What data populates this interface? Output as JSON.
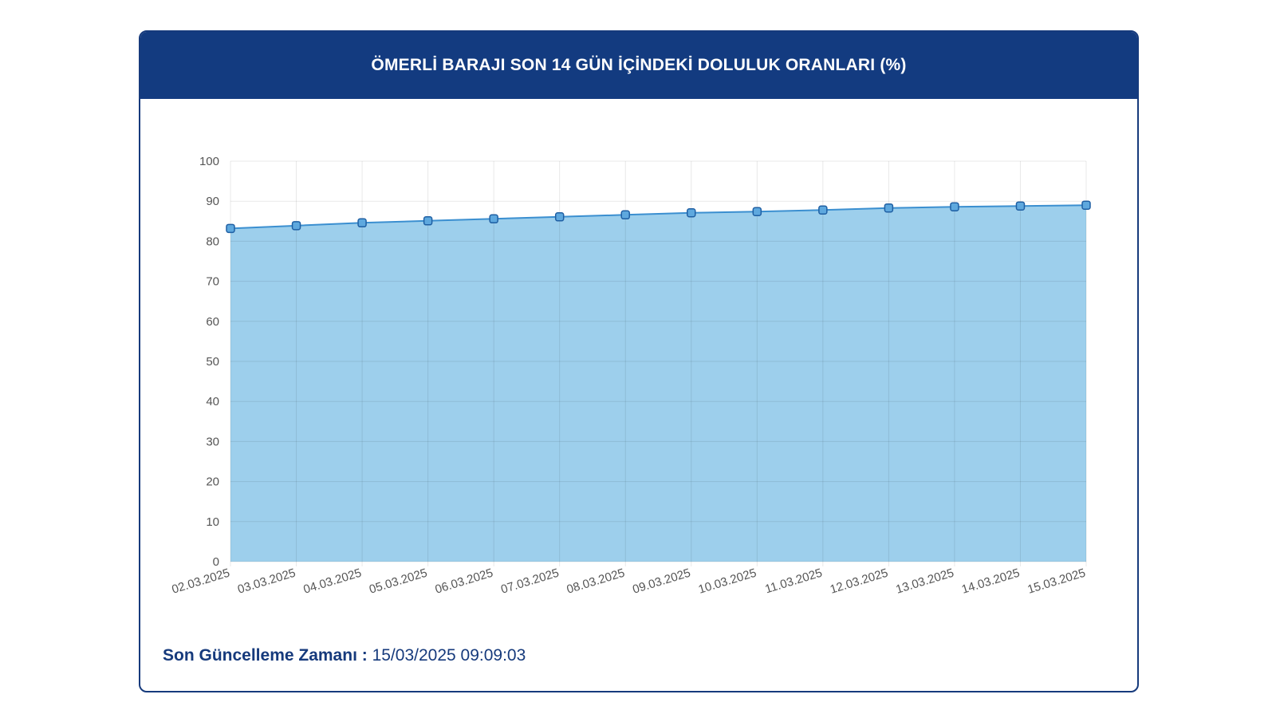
{
  "card": {
    "title": "ÖMERLİ BARAJI SON 14 GÜN İÇİNDEKİ DOLULUK ORANLARI (%)"
  },
  "footer": {
    "label": "Son Güncelleme Zamanı :",
    "value": "15/03/2025 09:09:03"
  },
  "colors": {
    "header": "#133b80",
    "area_fill": "#9dcfec",
    "line": "#3b8fd0",
    "marker_stroke": "#1f5fa3"
  },
  "chart_data": {
    "type": "area",
    "x": [
      "02.03.2025",
      "03.03.2025",
      "04.03.2025",
      "05.03.2025",
      "06.03.2025",
      "07.03.2025",
      "08.03.2025",
      "09.03.2025",
      "10.03.2025",
      "11.03.2025",
      "12.03.2025",
      "13.03.2025",
      "14.03.2025",
      "15.03.2025"
    ],
    "series": [
      {
        "values": [
          83.2,
          83.9,
          84.6,
          85.1,
          85.6,
          86.1,
          86.6,
          87.1,
          87.4,
          87.8,
          88.3,
          88.6,
          88.8,
          89.0
        ]
      }
    ],
    "ylim": [
      0,
      100
    ],
    "yticks": [
      0,
      10,
      20,
      30,
      40,
      50,
      60,
      70,
      80,
      90,
      100
    ],
    "grid": true,
    "legend": "none"
  }
}
